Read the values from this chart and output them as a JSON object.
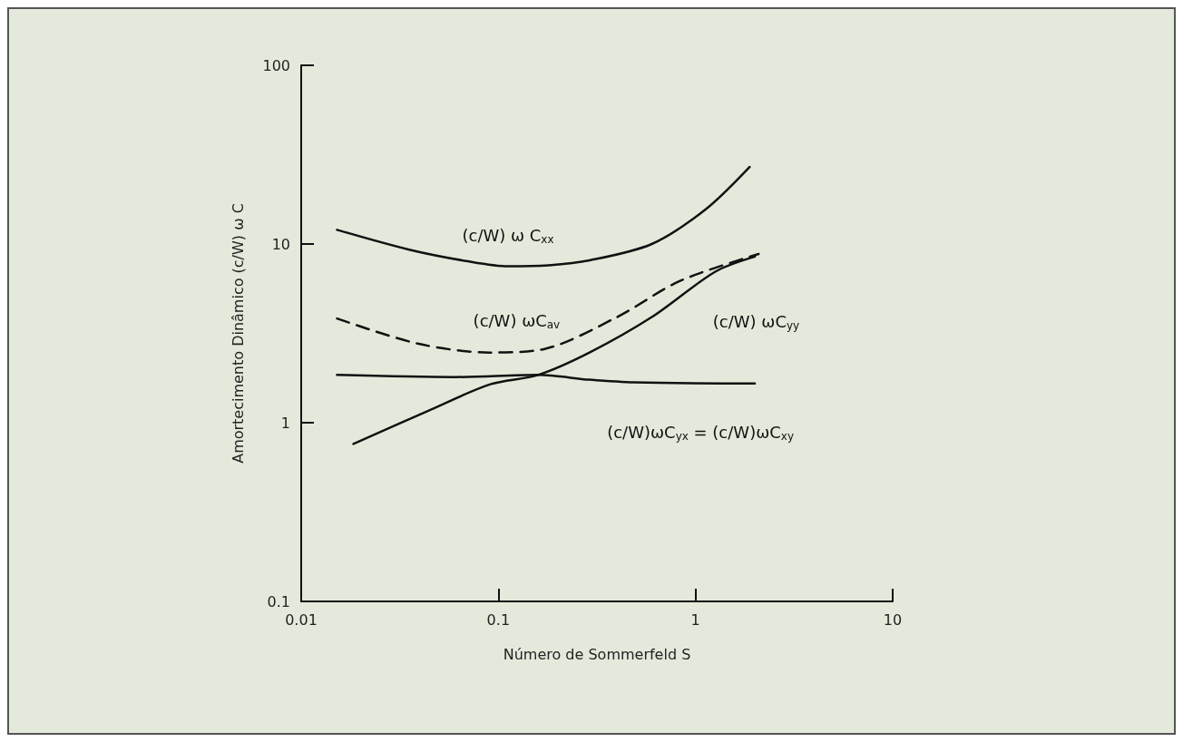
{
  "chart_data": {
    "type": "line",
    "xlabel": "Número de Sommerfeld S",
    "ylabel": "Amortecimento Dinâmico (c/W) ω C",
    "log": "xy",
    "grid": false,
    "legend": false,
    "marker": "none",
    "xlim": [
      0.01,
      10
    ],
    "xticks": [
      0.01,
      0.1,
      1,
      10
    ],
    "ylim": [
      0.1,
      100
    ],
    "yticks": [
      0.1,
      1,
      10,
      100
    ],
    "series": [
      {
        "name": "(c/W) ω C$_{xx}$",
        "color": "#111111",
        "line_style": "solid",
        "x": [
          0.0152,
          0.0353,
          0.07,
          0.112,
          0.18,
          0.29,
          0.6,
          1.13,
          1.88
        ],
        "values": [
          12.0,
          9.3,
          8.0,
          7.5,
          7.6,
          8.1,
          10,
          15.7,
          27
        ]
      },
      {
        "name": "(c/W) ωC$_{av}$",
        "color": "#111111",
        "line_style": "dashed",
        "x": [
          0.0152,
          0.039,
          0.09,
          0.17,
          0.4,
          0.83,
          2.09
        ],
        "values": [
          3.83,
          2.77,
          2.47,
          2.58,
          3.9,
          6.2,
          8.8
        ]
      },
      {
        "name": "(c/W) ωC$_{yy}$",
        "color": "#111111",
        "line_style": "solid",
        "x": [
          0.0184,
          0.0436,
          0.091,
          0.159,
          0.29,
          0.6,
          1.26,
          2.0
        ],
        "values": [
          0.76,
          1.16,
          1.64,
          1.85,
          2.47,
          3.9,
          7.0,
          8.5
        ]
      },
      {
        "name": "(c/W)ωC$_{yx}$ = (c/W)ωC$_{xy}$",
        "color": "#111111",
        "line_style": "solid",
        "x": [
          0.0152,
          0.06,
          0.159,
          0.29,
          0.49,
          2.0
        ],
        "values": [
          1.85,
          1.8,
          1.85,
          1.74,
          1.68,
          1.66
        ]
      }
    ]
  }
}
